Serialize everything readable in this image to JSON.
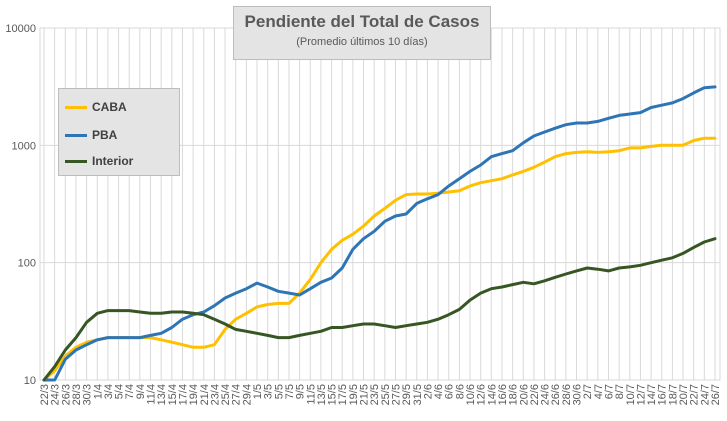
{
  "chart_data": {
    "type": "line",
    "title": "Pendiente del Total de Casos",
    "subtitle": "(Promedio últimos 10 días)",
    "xlabel": "",
    "ylabel": "",
    "y_scale": "log",
    "ylim": [
      10,
      10000
    ],
    "y_ticks": [
      "10",
      "100",
      "1000",
      "10000"
    ],
    "grid": true,
    "legend_position": "top-left",
    "categories": [
      "22/3",
      "24/3",
      "26/3",
      "28/3",
      "30/3",
      "1/4",
      "3/4",
      "5/4",
      "7/4",
      "9/4",
      "11/4",
      "13/4",
      "15/4",
      "17/4",
      "19/4",
      "21/4",
      "23/4",
      "25/4",
      "27/4",
      "29/4",
      "1/5",
      "3/5",
      "5/5",
      "7/5",
      "9/5",
      "11/5",
      "13/5",
      "15/5",
      "17/5",
      "19/5",
      "21/5",
      "23/5",
      "25/5",
      "27/5",
      "29/5",
      "31/5",
      "2/6",
      "4/6",
      "6/6",
      "8/6",
      "10/6",
      "12/6",
      "14/6",
      "16/6",
      "18/6",
      "20/6",
      "22/6",
      "24/6",
      "26/6",
      "28/6",
      "30/6",
      "2/7",
      "4/7",
      "6/7",
      "8/7",
      "10/7",
      "12/7",
      "14/7",
      "16/7",
      "18/7",
      "20/7",
      "22/7",
      "24/7",
      "26/7"
    ],
    "series": [
      {
        "name": "CABA",
        "color": "#ffc000",
        "values": [
          9,
          12,
          16,
          19,
          21,
          22,
          23,
          23,
          23,
          23,
          23,
          22,
          21,
          20,
          19,
          19,
          20,
          27,
          33,
          37,
          42,
          44,
          45,
          45,
          55,
          72,
          100,
          130,
          155,
          175,
          205,
          250,
          290,
          340,
          380,
          385,
          385,
          390,
          400,
          410,
          450,
          480,
          500,
          520,
          560,
          600,
          650,
          720,
          800,
          850,
          870,
          880,
          870,
          880,
          900,
          950,
          950,
          980,
          1000,
          1000,
          1000,
          1100,
          1150,
          1150
        ],
        "color_name": "yellow"
      },
      {
        "name": "PBA",
        "color": "#2e75b6",
        "values": [
          8,
          10,
          15,
          18,
          20,
          22,
          23,
          23,
          23,
          23,
          24,
          25,
          28,
          33,
          36,
          38,
          43,
          50,
          55,
          60,
          67,
          62,
          57,
          55,
          53,
          60,
          68,
          74,
          90,
          130,
          160,
          185,
          225,
          250,
          260,
          320,
          350,
          380,
          450,
          520,
          600,
          680,
          800,
          850,
          900,
          1050,
          1200,
          1300,
          1400,
          1500,
          1550,
          1550,
          1600,
          1700,
          1800,
          1850,
          1900,
          2100,
          2200,
          2300,
          2500,
          2800,
          3100,
          3150
        ],
        "color_name": "blue"
      },
      {
        "name": "Interior",
        "color": "#375623",
        "values": [
          9,
          13,
          18,
          23,
          31,
          37,
          39,
          39,
          39,
          38,
          37,
          37,
          38,
          38,
          37,
          36,
          33,
          30,
          27,
          26,
          25,
          24,
          23,
          23,
          24,
          25,
          26,
          28,
          28,
          29,
          30,
          30,
          29,
          28,
          29,
          30,
          31,
          33,
          36,
          40,
          48,
          55,
          60,
          62,
          65,
          68,
          66,
          70,
          75,
          80,
          85,
          90,
          88,
          85,
          90,
          92,
          95,
          100,
          105,
          110,
          120,
          135,
          150,
          160
        ],
        "color_name": "dark-green"
      }
    ]
  }
}
